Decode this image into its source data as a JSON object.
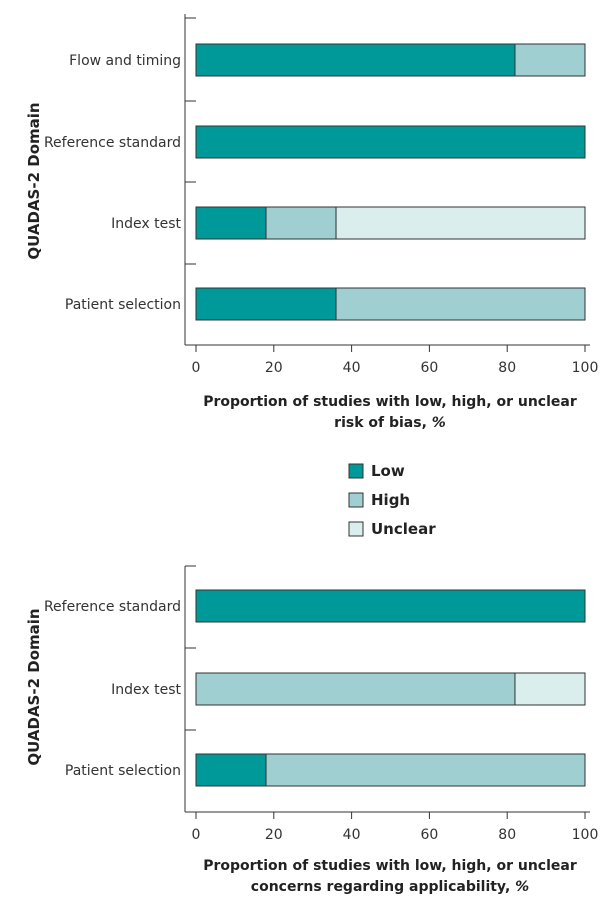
{
  "colors": {
    "Low": "#009999",
    "High": "#9fcfd1",
    "Unclear": "#dbeeee"
  },
  "legend": {
    "items": [
      "Low",
      "High",
      "Unclear"
    ]
  },
  "chart_data": [
    {
      "type": "bar",
      "orientation": "horizontal",
      "stacked": true,
      "categories": [
        "Flow and timing",
        "Reference standard",
        "Index test",
        "Patient selection"
      ],
      "series": [
        {
          "name": "Low",
          "values": [
            82,
            100,
            18,
            36
          ]
        },
        {
          "name": "High",
          "values": [
            18,
            0,
            18,
            64
          ]
        },
        {
          "name": "Unclear",
          "values": [
            0,
            0,
            64,
            0
          ]
        }
      ],
      "ylabel": "QUADAS-2 Domain",
      "xlabel_line1": "Proportion of studies with low, high, or unclear",
      "xlabel_line2": "risk of bias,",
      "xlabel_unit": "%",
      "xlim": [
        0,
        100
      ],
      "xticks": [
        "0",
        "20",
        "40",
        "60",
        "80",
        "100"
      ],
      "grid": false,
      "legend": "below"
    },
    {
      "type": "bar",
      "orientation": "horizontal",
      "stacked": true,
      "categories": [
        "Reference standard",
        "Index test",
        "Patient selection"
      ],
      "series": [
        {
          "name": "Low",
          "values": [
            100,
            0,
            18
          ]
        },
        {
          "name": "High",
          "values": [
            0,
            82,
            82
          ]
        },
        {
          "name": "Unclear",
          "values": [
            0,
            18,
            0
          ]
        }
      ],
      "ylabel": "QUADAS-2 Domain",
      "xlabel_line1": "Proportion of studies with low, high, or unclear",
      "xlabel_line2": "concerns regarding applicability,",
      "xlabel_unit": "%",
      "xlim": [
        0,
        100
      ],
      "xticks": [
        "0",
        "20",
        "40",
        "60",
        "80",
        "100"
      ],
      "grid": false,
      "legend": "above"
    }
  ]
}
